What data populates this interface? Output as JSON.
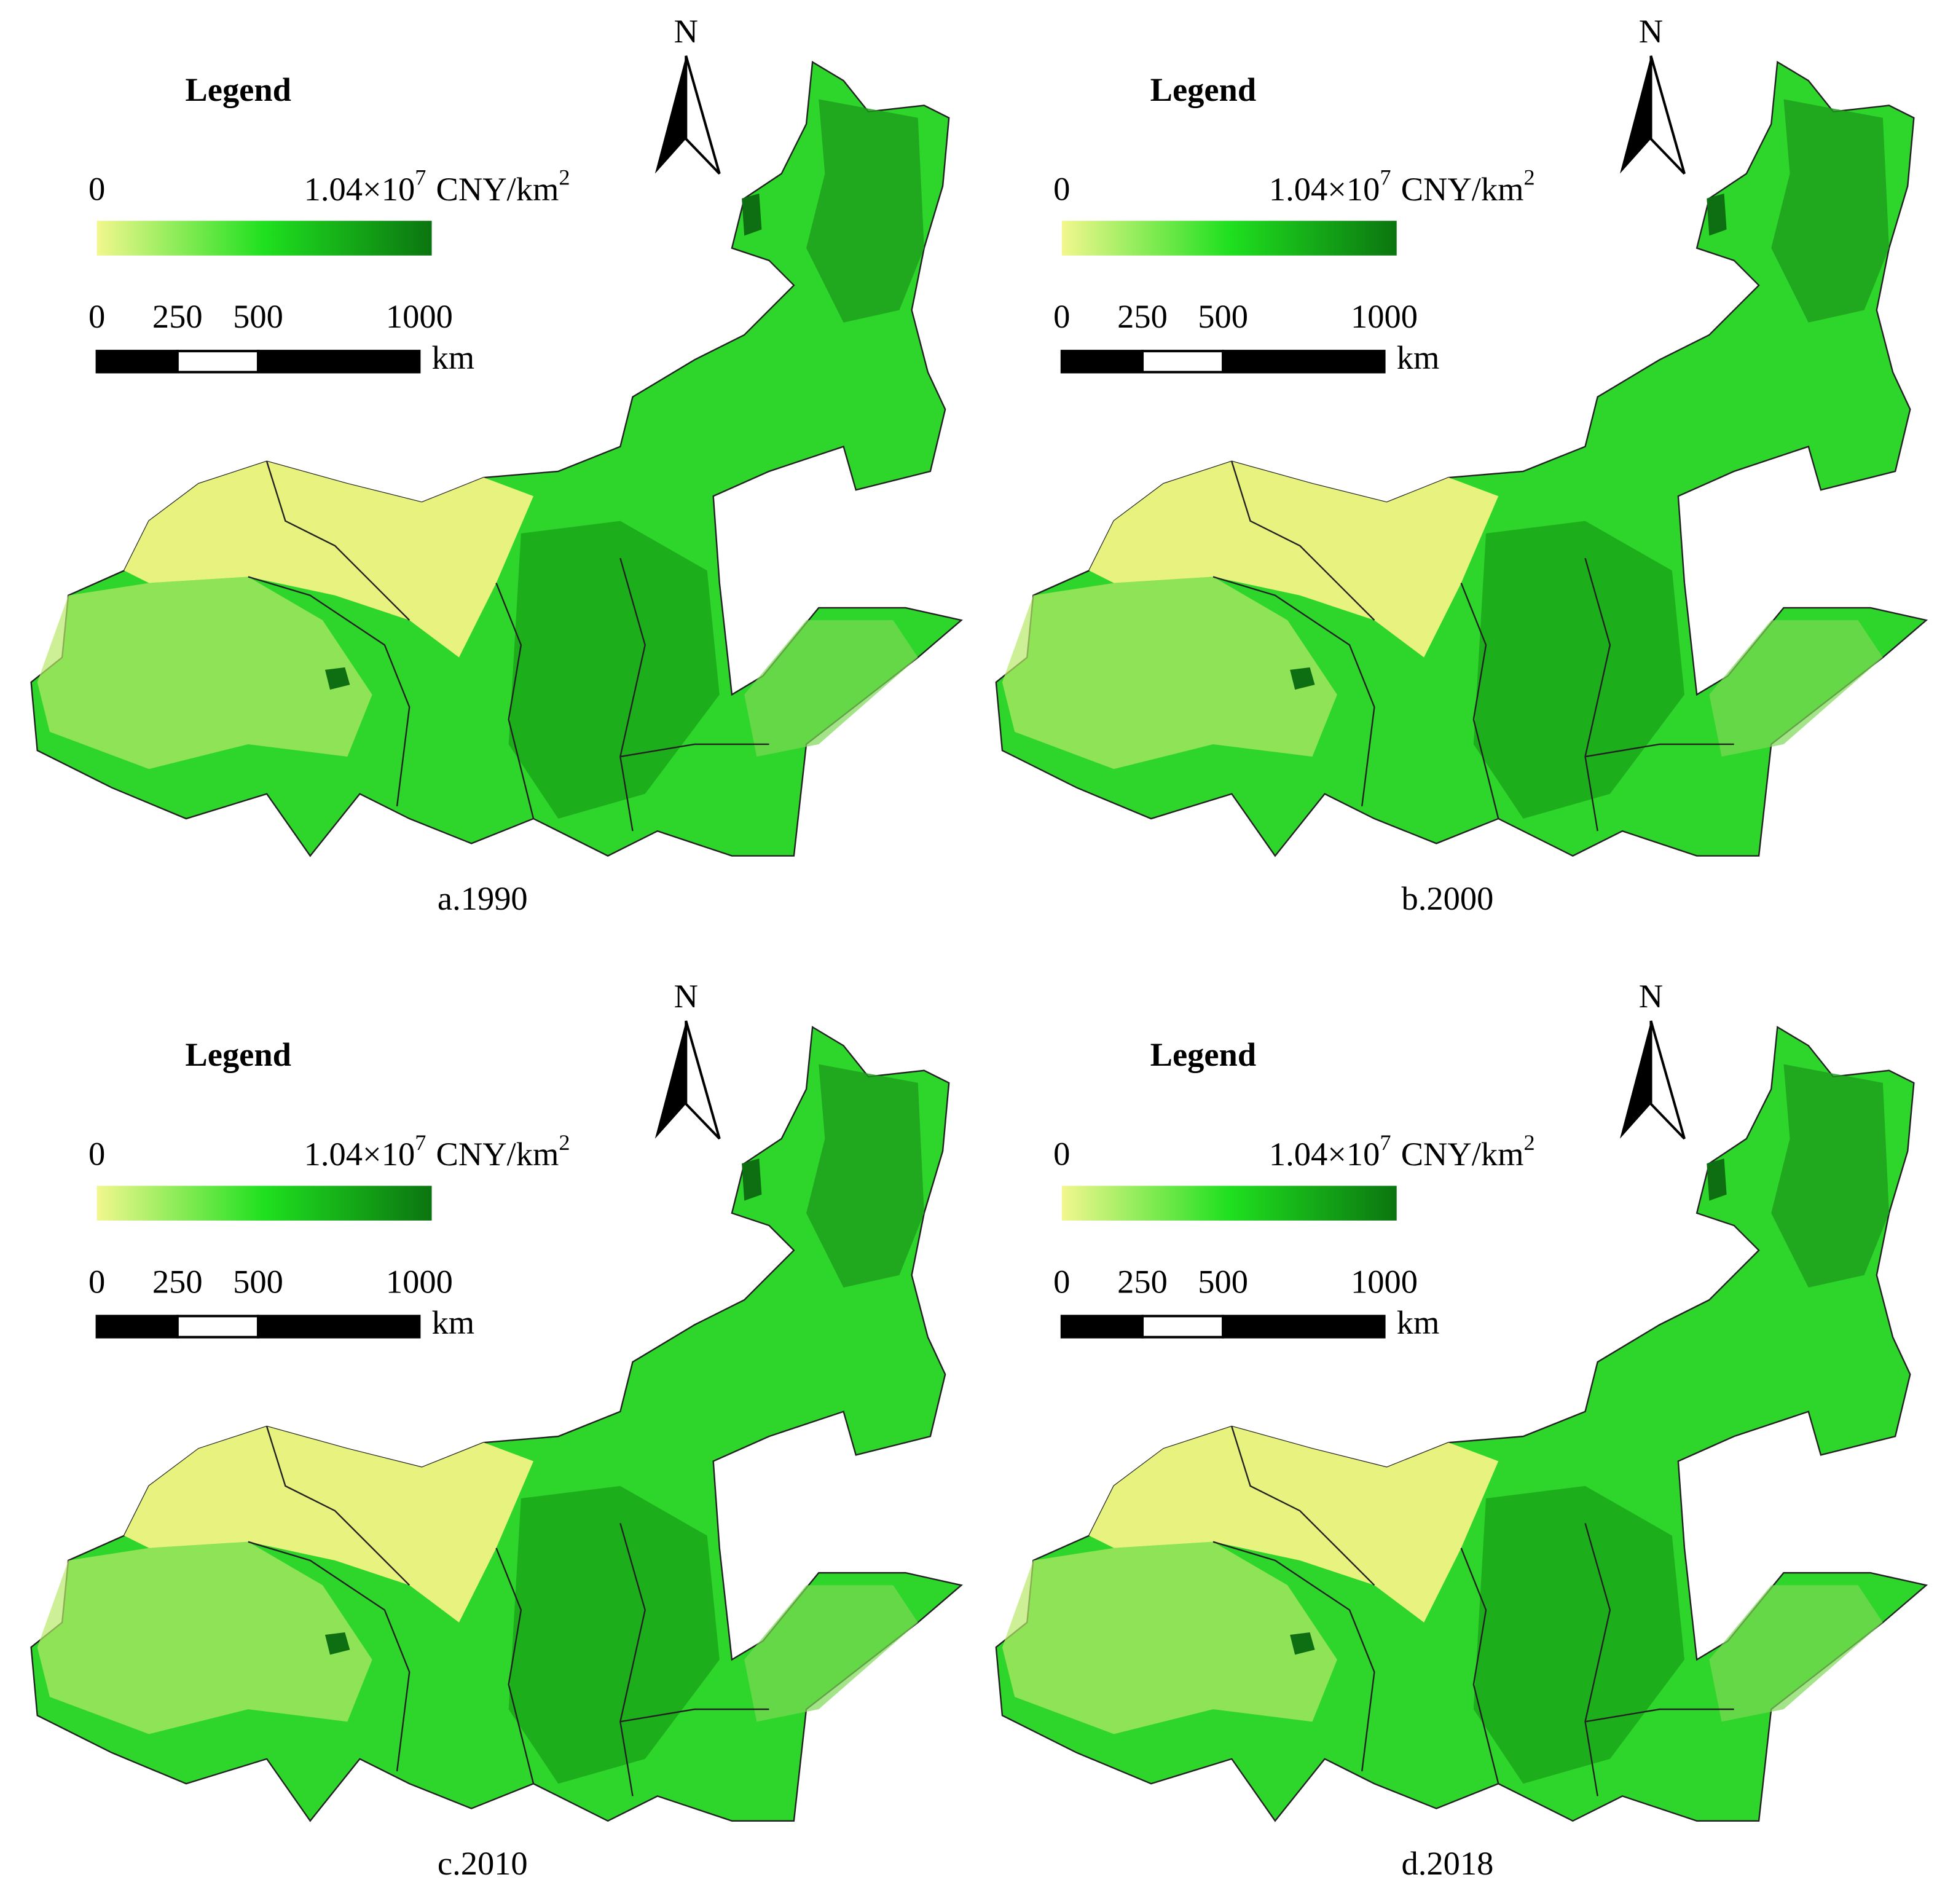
{
  "panels": [
    {
      "caption": "a.1990",
      "north": "N",
      "legend": {
        "title": "Legend",
        "min_label": 0,
        "max_label": {
          "base": "1.04×10",
          "exponent": "7",
          "unit": "CNY/km",
          "unit_exponent": "2"
        },
        "colors": [
          "#f2f78e",
          "#1fe01f",
          "#0b7510"
        ]
      },
      "scale_bar": {
        "ticks": [
          0,
          250,
          500,
          1000
        ],
        "unit": "km"
      }
    },
    {
      "caption": "b.2000",
      "north": "N",
      "legend": {
        "title": "Legend",
        "min_label": 0,
        "max_label": {
          "base": "1.04×10",
          "exponent": "7",
          "unit": "CNY/km",
          "unit_exponent": "2"
        },
        "colors": [
          "#f2f78e",
          "#1fe01f",
          "#0b7510"
        ]
      },
      "scale_bar": {
        "ticks": [
          0,
          250,
          500,
          1000
        ],
        "unit": "km"
      }
    },
    {
      "caption": "c.2010",
      "north": "N",
      "legend": {
        "title": "Legend",
        "min_label": 0,
        "max_label": {
          "base": "1.04×10",
          "exponent": "7",
          "unit": "CNY/km",
          "unit_exponent": "2"
        },
        "colors": [
          "#f2f78e",
          "#1fe01f",
          "#0b7510"
        ]
      },
      "scale_bar": {
        "ticks": [
          0,
          250,
          500,
          1000
        ],
        "unit": "km"
      }
    },
    {
      "caption": "d.2018",
      "north": "N",
      "legend": {
        "title": "Legend",
        "min_label": 0,
        "max_label": {
          "base": "1.04×10",
          "exponent": "7",
          "unit": "CNY/km",
          "unit_exponent": "2"
        },
        "colors": [
          "#f2f78e",
          "#1fe01f",
          "#0b7510"
        ]
      },
      "scale_bar": {
        "ticks": [
          0,
          250,
          500,
          1000
        ],
        "unit": "km"
      }
    }
  ]
}
